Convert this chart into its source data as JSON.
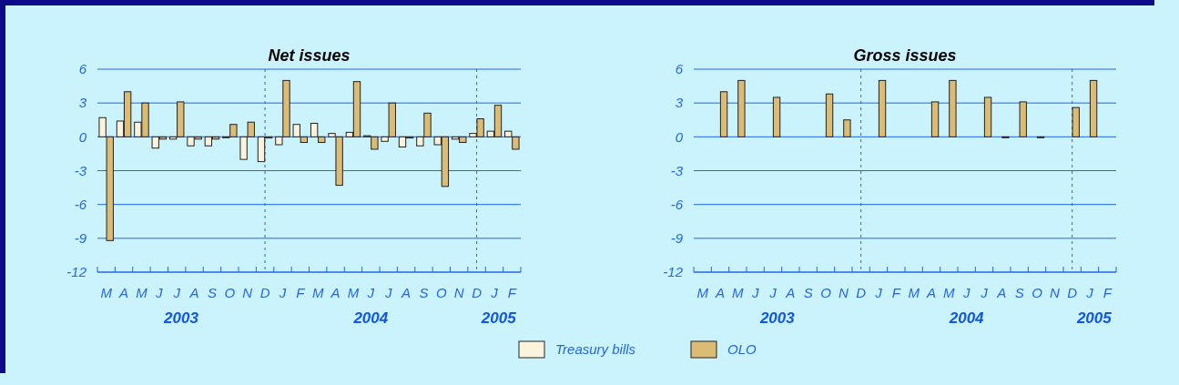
{
  "chart_data": [
    {
      "type": "bar",
      "title": "Net issues",
      "categories": [
        "M",
        "A",
        "M",
        "J",
        "J",
        "A",
        "S",
        "O",
        "N",
        "D",
        "J",
        "F",
        "M",
        "A",
        "M",
        "J",
        "J",
        "A",
        "S",
        "O",
        "N",
        "D",
        "J",
        "F"
      ],
      "series": [
        {
          "name": "Treasury bills",
          "color": "#fbf3dc",
          "values": [
            1.7,
            1.4,
            1.3,
            -1.0,
            -0.2,
            -0.8,
            -0.8,
            0,
            -2.0,
            -2.2,
            -0.7,
            1.1,
            1.2,
            0.3,
            0.4,
            0.1,
            -0.4,
            -0.9,
            -0.8,
            -0.7,
            -0.2,
            0.3,
            0.5,
            0.5
          ]
        },
        {
          "name": "OLO",
          "color": "#dcbb74",
          "values": [
            -9.2,
            4.0,
            3.0,
            -0.2,
            3.1,
            -0.2,
            -0.2,
            1.1,
            1.3,
            -0.1,
            5.0,
            -0.5,
            -0.5,
            -4.3,
            4.9,
            -1.1,
            3.0,
            -0.1,
            2.1,
            -4.4,
            -0.5,
            1.6,
            2.8,
            -1.1
          ]
        }
      ],
      "ylim": [
        -12,
        6
      ],
      "yticks": [
        -12,
        -9,
        -6,
        -3,
        0,
        3,
        6
      ],
      "grid": true,
      "legend": "bottom",
      "annotations": [
        "2003",
        "2004",
        "2005"
      ]
    },
    {
      "type": "bar",
      "title": "Gross issues",
      "categories": [
        "M",
        "A",
        "M",
        "J",
        "J",
        "A",
        "S",
        "O",
        "N",
        "D",
        "J",
        "F",
        "M",
        "A",
        "M",
        "J",
        "J",
        "A",
        "S",
        "O",
        "N",
        "D",
        "J",
        "F"
      ],
      "series": [
        {
          "color": "#dcbb74",
          "values": [
            null,
            4.0,
            5.0,
            null,
            3.5,
            null,
            null,
            3.8,
            1.5,
            null,
            5.0,
            null,
            null,
            3.1,
            5.0,
            null,
            3.5,
            0,
            3.1,
            0,
            null,
            2.6,
            5.0,
            null
          ]
        }
      ],
      "ylim": [
        -12,
        6
      ],
      "yticks": [
        -12,
        -9,
        -6,
        -3,
        0,
        3,
        6
      ],
      "grid": true,
      "annotations": [
        "2003",
        "2004",
        "2005"
      ]
    }
  ]
}
